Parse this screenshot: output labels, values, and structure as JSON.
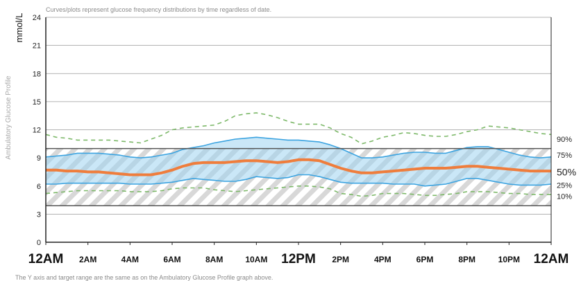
{
  "chart_data": {
    "type": "area",
    "title": "Ambulatory Glucose Profile",
    "header_note": "Curves/plots represent glucose frequency distributions by time regardless of date.",
    "footer_note": "The Y axis and target range are the same as on the Ambulatory Glucose Profile graph above.",
    "side_label": "Ambulatory Glucose Profile",
    "ylabel": "mmol/L",
    "ylim": [
      0,
      24
    ],
    "y_ticks": [
      0,
      3,
      6,
      9,
      12,
      15,
      18,
      21,
      24
    ],
    "xlim": [
      0,
      24
    ],
    "x_ticks": [
      {
        "hour": 0,
        "label": "12AM",
        "major": true
      },
      {
        "hour": 2,
        "label": "2AM",
        "major": false
      },
      {
        "hour": 4,
        "label": "4AM",
        "major": false
      },
      {
        "hour": 6,
        "label": "6AM",
        "major": false
      },
      {
        "hour": 8,
        "label": "8AM",
        "major": false
      },
      {
        "hour": 10,
        "label": "10AM",
        "major": false
      },
      {
        "hour": 12,
        "label": "12PM",
        "major": true
      },
      {
        "hour": 14,
        "label": "2PM",
        "major": false
      },
      {
        "hour": 16,
        "label": "4PM",
        "major": false
      },
      {
        "hour": 18,
        "label": "6PM",
        "major": false
      },
      {
        "hour": 20,
        "label": "8PM",
        "major": false
      },
      {
        "hour": 22,
        "label": "10PM",
        "major": false
      },
      {
        "hour": 24,
        "label": "12AM",
        "major": true
      }
    ],
    "target_range": [
      3.9,
      10.0
    ],
    "x": [
      0,
      0.5,
      1,
      1.5,
      2,
      2.5,
      3,
      3.5,
      4,
      4.5,
      5,
      5.5,
      6,
      6.5,
      7,
      7.5,
      8,
      8.5,
      9,
      9.5,
      10,
      10.5,
      11,
      11.5,
      12,
      12.5,
      13,
      13.5,
      14,
      14.5,
      15,
      15.5,
      16,
      16.5,
      17,
      17.5,
      18,
      18.5,
      19,
      19.5,
      20,
      20.5,
      21,
      21.5,
      22,
      22.5,
      23,
      23.5,
      24
    ],
    "series": [
      {
        "name": "90%",
        "label": "90%",
        "style": "dashed",
        "color": "#7cb868",
        "values": [
          11.5,
          11.2,
          11.1,
          10.9,
          10.9,
          10.9,
          10.9,
          10.8,
          10.7,
          10.6,
          11.0,
          11.4,
          12.0,
          12.2,
          12.3,
          12.4,
          12.5,
          12.9,
          13.5,
          13.7,
          13.8,
          13.6,
          13.3,
          12.9,
          12.6,
          12.6,
          12.6,
          12.2,
          11.6,
          11.2,
          10.5,
          10.8,
          11.2,
          11.4,
          11.7,
          11.6,
          11.4,
          11.3,
          11.3,
          11.5,
          11.8,
          12.0,
          12.4,
          12.3,
          12.2,
          12.0,
          11.8,
          11.6,
          11.5
        ]
      },
      {
        "name": "75%",
        "label": "75%",
        "style": "solid",
        "color": "#3ba3e0",
        "values": [
          9.1,
          9.2,
          9.3,
          9.5,
          9.5,
          9.5,
          9.4,
          9.3,
          9.1,
          9.0,
          9.1,
          9.3,
          9.5,
          9.9,
          10.1,
          10.3,
          10.6,
          10.8,
          11.0,
          11.1,
          11.2,
          11.1,
          11.0,
          10.9,
          10.9,
          10.8,
          10.7,
          10.4,
          10.0,
          9.5,
          9.0,
          9.0,
          9.1,
          9.3,
          9.5,
          9.6,
          9.6,
          9.5,
          9.5,
          9.8,
          10.1,
          10.2,
          10.2,
          9.9,
          9.6,
          9.3,
          9.1,
          9.0,
          9.1
        ]
      },
      {
        "name": "50%",
        "label": "50%",
        "style": "solid",
        "color": "#ef7d3c",
        "values": [
          7.7,
          7.7,
          7.6,
          7.6,
          7.5,
          7.5,
          7.4,
          7.3,
          7.2,
          7.2,
          7.2,
          7.4,
          7.7,
          8.1,
          8.4,
          8.5,
          8.5,
          8.5,
          8.6,
          8.7,
          8.7,
          8.6,
          8.5,
          8.6,
          8.8,
          8.8,
          8.7,
          8.3,
          7.9,
          7.6,
          7.4,
          7.4,
          7.5,
          7.6,
          7.7,
          7.8,
          7.9,
          7.9,
          7.9,
          8.0,
          8.1,
          8.1,
          8.0,
          7.9,
          7.8,
          7.7,
          7.6,
          7.6,
          7.6
        ]
      },
      {
        "name": "25%",
        "label": "25%",
        "style": "solid",
        "color": "#3ba3e0",
        "values": [
          6.2,
          6.2,
          6.3,
          6.3,
          6.3,
          6.3,
          6.3,
          6.3,
          6.2,
          6.2,
          6.2,
          6.3,
          6.4,
          6.6,
          6.8,
          6.7,
          6.6,
          6.5,
          6.5,
          6.7,
          7.0,
          6.9,
          6.8,
          6.9,
          7.2,
          7.2,
          7.0,
          6.7,
          6.4,
          6.3,
          6.3,
          6.3,
          6.3,
          6.2,
          6.2,
          6.2,
          6.0,
          6.1,
          6.2,
          6.5,
          6.8,
          6.8,
          6.6,
          6.4,
          6.2,
          6.1,
          6.1,
          6.1,
          6.2
        ]
      },
      {
        "name": "10%",
        "label": "10%",
        "style": "dashed",
        "color": "#7cb868",
        "values": [
          5.2,
          5.3,
          5.4,
          5.5,
          5.5,
          5.5,
          5.5,
          5.5,
          5.4,
          5.4,
          5.4,
          5.5,
          5.7,
          5.8,
          5.8,
          5.8,
          5.6,
          5.5,
          5.4,
          5.5,
          5.6,
          5.7,
          5.8,
          5.9,
          6.0,
          6.0,
          5.9,
          5.7,
          5.2,
          5.1,
          4.9,
          5.0,
          5.2,
          5.2,
          5.2,
          5.1,
          5.0,
          5.0,
          5.1,
          5.2,
          5.4,
          5.4,
          5.4,
          5.3,
          5.2,
          5.2,
          5.1,
          5.1,
          5.1
        ]
      }
    ]
  }
}
